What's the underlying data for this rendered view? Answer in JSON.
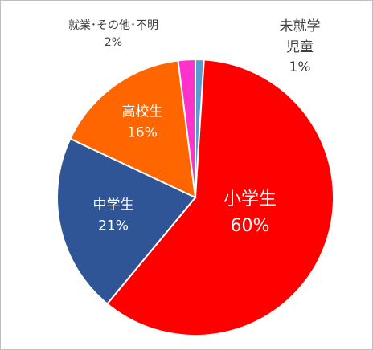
{
  "chart_data": {
    "type": "pie",
    "categories": [
      "未就学児童",
      "小学生",
      "中学生",
      "高校生",
      "就業･その他･不明"
    ],
    "values": [
      1,
      60,
      21,
      16,
      2
    ],
    "value_labels": [
      "1%",
      "60%",
      "21%",
      "16%",
      "2%"
    ],
    "colors": [
      "#5b9bd5",
      "#ff0000",
      "#2f5597",
      "#ff6600",
      "#ff33cc"
    ]
  }
}
